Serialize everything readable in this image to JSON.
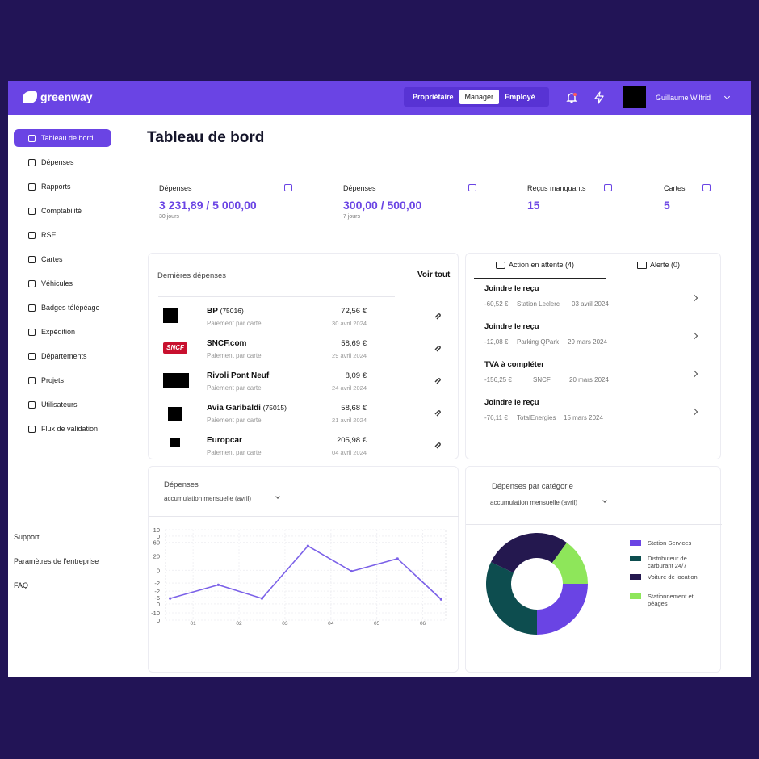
{
  "header": {
    "logo": "greenway",
    "roles": [
      {
        "label": "Propriétaire"
      },
      {
        "label": "Manager",
        "active": true
      },
      {
        "label": "Employé"
      }
    ],
    "user": "Guillaume Wilfrid"
  },
  "sidebar": {
    "nav": [
      {
        "label": "Tableau de bord",
        "active": true
      },
      {
        "label": "Dépenses"
      },
      {
        "label": "Rapports"
      },
      {
        "label": "Comptabilité"
      },
      {
        "label": "RSE"
      },
      {
        "label": "Cartes"
      },
      {
        "label": "Véhicules"
      },
      {
        "label": "Badges télépéage"
      },
      {
        "label": "Expédition"
      },
      {
        "label": "Départements"
      },
      {
        "label": "Projets"
      },
      {
        "label": "Utilisateurs"
      },
      {
        "label": "Flux de validation"
      }
    ],
    "footer": [
      "Support",
      "Paramètres de l'entreprise",
      "FAQ"
    ]
  },
  "page_title": "Tableau de bord",
  "stats": [
    {
      "label": "Dépenses",
      "value": "3 231,89 / 5 000,00",
      "period": "30 jours"
    },
    {
      "label": "Dépenses",
      "value": "300,00 / 500,00",
      "period": "7 jours"
    },
    {
      "label": "Reçus manquants",
      "value": "15"
    },
    {
      "label": "Cartes",
      "value": "5"
    }
  ],
  "recent_expenses": {
    "title": "Dernières dépenses",
    "link": "Voir tout",
    "rows": [
      {
        "merchant": "BP",
        "detail": "(75016)",
        "method": "Paiement par carte",
        "amount": "72,56 €",
        "date": "30 avril 2024"
      },
      {
        "merchant": "SNCF.com",
        "logo_text": "SNCF",
        "method": "Paiement par carte",
        "amount": "58,69 €",
        "date": "29 avril 2024"
      },
      {
        "merchant": "Rivoli Pont Neuf",
        "method": "Paiement par carte",
        "amount": "8,09 €",
        "date": "24 avril 2024"
      },
      {
        "merchant": "Avia Garibaldi",
        "detail": "(75015)",
        "method": "Paiement par carte",
        "amount": "58,68 €",
        "date": "21 avril 2024"
      },
      {
        "merchant": "Europcar",
        "method": "Paiement par carte",
        "amount": "205,98 €",
        "date": "04 avril 2024"
      }
    ]
  },
  "tasks": {
    "tabs": [
      {
        "label": "Action en attente (4)",
        "active": true
      },
      {
        "label": "Alerte (0)"
      }
    ],
    "items": [
      {
        "title": "Joindre le reçu",
        "amount": "-60,52 €",
        "merchant": "Station Leclerc",
        "date": "03 avril 2024"
      },
      {
        "title": "Joindre le reçu",
        "amount": "-12,08 €",
        "merchant": "Parking QPark",
        "date": "29 mars 2024"
      },
      {
        "title": "TVA à compléter",
        "amount": "-156,25 €",
        "merchant": "SNCF",
        "date": "20 mars 2024"
      },
      {
        "title": "Joindre le reçu",
        "amount": "-76,11 €",
        "merchant": "TotalEnergies",
        "date": "15 mars 2024"
      }
    ]
  },
  "chart_data": [
    {
      "type": "line",
      "title": "Dépenses",
      "subtitle": "accumulation mensuelle (avril)",
      "x": [
        0.5,
        1.55,
        2.5,
        3.5,
        4.45,
        5.45,
        6.4
      ],
      "values": [
        24,
        39,
        24,
        82,
        54,
        68,
        23
      ],
      "color": "#7b61e8",
      "xlim": [
        0.4,
        6.5
      ],
      "xticks": [
        {
          "value": 1,
          "label": "01"
        },
        {
          "value": 2,
          "label": "02"
        },
        {
          "value": 3,
          "label": "03"
        },
        {
          "value": 4,
          "label": "04"
        },
        {
          "value": 5,
          "label": "05"
        },
        {
          "value": 6,
          "label": "06"
        }
      ],
      "ylim": [
        0,
        100
      ],
      "yticks": [
        {
          "value": 100,
          "label": "10"
        },
        {
          "value": 93,
          "label": "0"
        },
        {
          "value": 86,
          "label": "60"
        },
        {
          "value": 71,
          "label": "20"
        },
        {
          "value": 55,
          "label": "0"
        },
        {
          "value": 41,
          "label": "-2"
        },
        {
          "value": 32,
          "label": "-2"
        },
        {
          "value": 25,
          "label": "-6"
        },
        {
          "value": 18,
          "label": "0"
        },
        {
          "value": 8,
          "label": "-10"
        },
        0
      ],
      "grid": true
    },
    {
      "type": "pie",
      "title": "Dépenses par catégorie",
      "subtitle": "accumulation mensuelle (avril)",
      "categories": [
        "Station Services",
        "Distributeur de carburant 24/7",
        "Voiture de location",
        "Stationnement et péages"
      ],
      "values": [
        25,
        32,
        28,
        15
      ],
      "colors": [
        "#6a44e4",
        "#0d4d4f",
        "#24184f",
        "#8ee65a"
      ],
      "donut": true,
      "legend": "right"
    }
  ]
}
